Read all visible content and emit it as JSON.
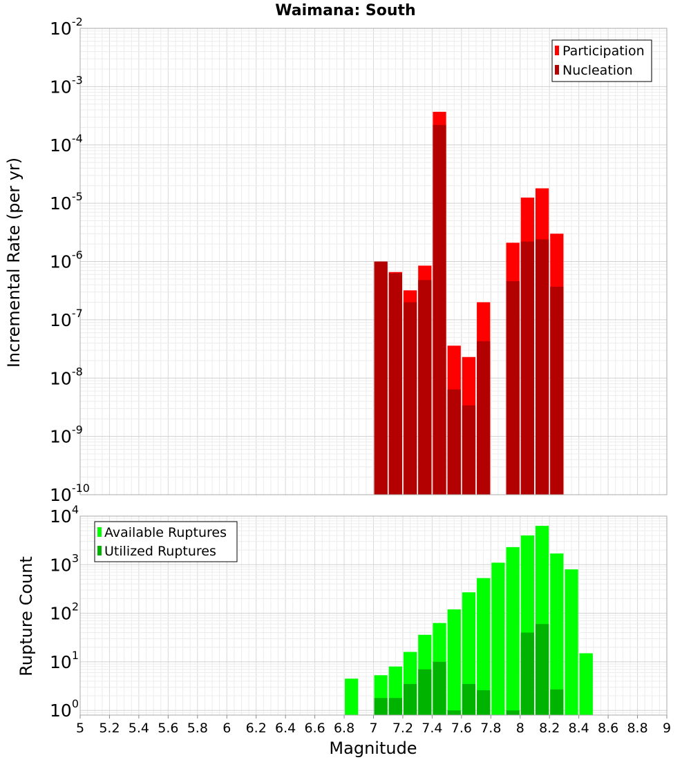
{
  "title": "Waimana: South",
  "chart_data": [
    {
      "type": "bar",
      "panel": "top",
      "y_scale": "log",
      "ylabel": "Incremental Rate (per yr)",
      "ylim": [
        1e-10,
        0.01
      ],
      "xlim": [
        5,
        9
      ],
      "grid": true,
      "legend_position": "top-right",
      "bar_width": 0.1,
      "y_tick_labels": [
        {
          "base": "10",
          "exp": "-10"
        },
        {
          "base": "10",
          "exp": "-9"
        },
        {
          "base": "10",
          "exp": "-8"
        },
        {
          "base": "10",
          "exp": "-7"
        },
        {
          "base": "10",
          "exp": "-6"
        },
        {
          "base": "10",
          "exp": "-5"
        },
        {
          "base": "10",
          "exp": "-4"
        },
        {
          "base": "10",
          "exp": "-3"
        },
        {
          "base": "10",
          "exp": "-2"
        }
      ],
      "series": [
        {
          "name": "Participation",
          "color": "#ff0000",
          "x": [
            7.05,
            7.15,
            7.25,
            7.35,
            7.45,
            7.55,
            7.65,
            7.75,
            7.95,
            8.05,
            8.15,
            8.25
          ],
          "values": [
            1e-06,
            6.6e-07,
            3.2e-07,
            8.5e-07,
            0.00037,
            3.6e-08,
            2.3e-08,
            2e-07,
            2.1e-06,
            1.25e-05,
            1.8e-05,
            3e-06
          ]
        },
        {
          "name": "Nucleation",
          "color": "#b30000",
          "x": [
            7.05,
            7.15,
            7.25,
            7.35,
            7.45,
            7.55,
            7.65,
            7.75,
            7.95,
            8.05,
            8.15,
            8.25
          ],
          "values": [
            1e-06,
            6.3e-07,
            2e-07,
            4.8e-07,
            0.00022,
            6.4e-09,
            3.4e-09,
            4.3e-08,
            4.6e-07,
            2.2e-06,
            2.4e-06,
            3.7e-07
          ]
        }
      ]
    },
    {
      "type": "bar",
      "panel": "bottom",
      "y_scale": "log",
      "ylabel": "Rupture Count",
      "xlabel": "Magnitude",
      "ylim": [
        0.8,
        10000
      ],
      "xlim": [
        5,
        9
      ],
      "grid": true,
      "legend_position": "top-left",
      "bar_width": 0.1,
      "x_tick_labels": [
        "5",
        "5.2",
        "5.4",
        "5.6",
        "5.8",
        "6",
        "6.2",
        "6.4",
        "6.6",
        "6.8",
        "7",
        "7.2",
        "7.4",
        "7.6",
        "7.8",
        "8",
        "8.2",
        "8.4",
        "8.6",
        "8.8",
        "9"
      ],
      "y_tick_labels": [
        {
          "base": "10",
          "exp": "0"
        },
        {
          "base": "10",
          "exp": "1"
        },
        {
          "base": "10",
          "exp": "2"
        },
        {
          "base": "10",
          "exp": "3"
        },
        {
          "base": "10",
          "exp": "4"
        }
      ],
      "series": [
        {
          "name": "Available Ruptures",
          "color": "#00ff00",
          "x": [
            6.85,
            7.05,
            7.15,
            7.25,
            7.35,
            7.45,
            7.55,
            7.65,
            7.75,
            7.85,
            7.95,
            8.05,
            8.15,
            8.25,
            8.35,
            8.45
          ],
          "values": [
            4.5,
            5.3,
            8,
            16,
            36,
            63,
            120,
            270,
            530,
            1100,
            2300,
            4000,
            6300,
            1700,
            800,
            15
          ]
        },
        {
          "name": "Utilized Ruptures",
          "color": "#00b300",
          "x": [
            6.85,
            7.05,
            7.15,
            7.25,
            7.35,
            7.45,
            7.55,
            7.65,
            7.75,
            7.85,
            7.95,
            8.05,
            8.15,
            8.25,
            8.35,
            8.45
          ],
          "values": [
            0,
            1.8,
            1.8,
            3.5,
            7,
            10,
            1,
            3.5,
            2.6,
            0,
            1,
            40,
            60,
            2.7,
            0,
            0
          ]
        }
      ]
    }
  ]
}
